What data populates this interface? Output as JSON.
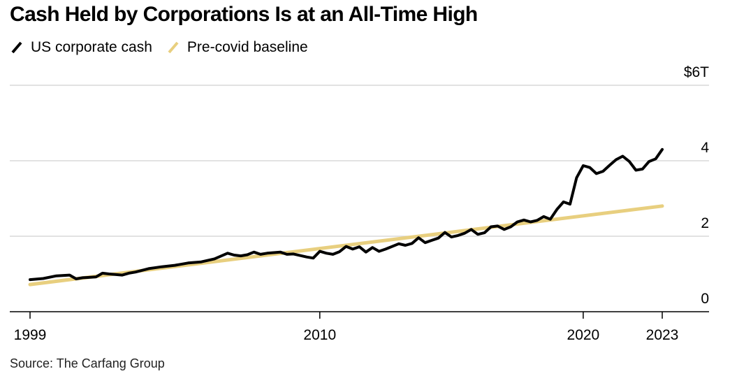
{
  "header": {
    "title": "Cash Held by Corporations Is at an All-Time High"
  },
  "legend": [
    {
      "label": "US corporate cash",
      "color": "#000000",
      "icon": "slash-line-icon"
    },
    {
      "label": "Pre-covid baseline",
      "color": "#e8cf7f",
      "icon": "slash-line-icon"
    }
  ],
  "footer": {
    "source": "Source: The Carfang Group"
  },
  "chart_data": {
    "type": "line",
    "title": "Cash Held by Corporations Is at an All-Time High",
    "xlabel": "",
    "ylabel": "",
    "xlim": [
      1999,
      2025.0
    ],
    "ylim": [
      0,
      6
    ],
    "grid": true,
    "legend_position": "top-left",
    "y_ticks": [
      {
        "value": 6,
        "label": "$6T"
      },
      {
        "value": 4,
        "label": "4"
      },
      {
        "value": 2,
        "label": "2"
      },
      {
        "value": 0,
        "label": "0"
      }
    ],
    "x_ticks": [
      {
        "value": 1999,
        "label": "1999"
      },
      {
        "value": 2010,
        "label": "2010"
      },
      {
        "value": 2020,
        "label": "2020"
      },
      {
        "value": 2023,
        "label": "2023"
      }
    ],
    "series": [
      {
        "name": "US corporate cash",
        "color": "#000000",
        "x": [
          1999.0,
          1999.5,
          2000.0,
          2000.5,
          2000.75,
          2001.0,
          2001.5,
          2001.75,
          2002.0,
          2002.5,
          2002.75,
          2003.0,
          2003.5,
          2004.0,
          2004.5,
          2005.0,
          2005.5,
          2006.0,
          2006.5,
          2006.75,
          2007.0,
          2007.25,
          2007.5,
          2007.75,
          2008.0,
          2008.5,
          2008.75,
          2009.0,
          2009.5,
          2009.75,
          2010.0,
          2010.25,
          2010.5,
          2010.75,
          2011.0,
          2011.25,
          2011.5,
          2011.75,
          2012.0,
          2012.25,
          2012.5,
          2013.0,
          2013.25,
          2013.5,
          2013.75,
          2014.0,
          2014.25,
          2014.5,
          2014.75,
          2015.0,
          2015.25,
          2015.5,
          2015.75,
          2016.0,
          2016.25,
          2016.5,
          2016.75,
          2017.0,
          2017.25,
          2017.5,
          2017.75,
          2018.0,
          2018.25,
          2018.5,
          2018.75,
          2019.0,
          2019.25,
          2019.5,
          2019.75,
          2020.0,
          2020.25,
          2020.5,
          2020.75,
          2021.0,
          2021.25,
          2021.5,
          2021.75,
          2022.0,
          2022.25,
          2022.5,
          2022.75,
          2023.0
        ],
        "values": [
          0.85,
          0.88,
          0.95,
          0.97,
          0.87,
          0.9,
          0.92,
          1.02,
          1.0,
          0.97,
          1.02,
          1.05,
          1.14,
          1.19,
          1.23,
          1.29,
          1.32,
          1.4,
          1.55,
          1.5,
          1.48,
          1.51,
          1.58,
          1.52,
          1.55,
          1.58,
          1.52,
          1.53,
          1.45,
          1.42,
          1.6,
          1.55,
          1.52,
          1.59,
          1.73,
          1.66,
          1.72,
          1.58,
          1.7,
          1.6,
          1.66,
          1.8,
          1.76,
          1.81,
          1.96,
          1.83,
          1.89,
          1.95,
          2.1,
          1.98,
          2.02,
          2.08,
          2.18,
          2.05,
          2.09,
          2.25,
          2.27,
          2.18,
          2.25,
          2.38,
          2.43,
          2.38,
          2.42,
          2.52,
          2.45,
          2.71,
          2.91,
          2.85,
          3.55,
          3.87,
          3.82,
          3.66,
          3.72,
          3.88,
          4.03,
          4.12,
          3.98,
          3.75,
          3.78,
          3.98,
          4.05,
          4.3
        ]
      },
      {
        "name": "Pre-covid baseline",
        "color": "#e8cf7f",
        "x": [
          1999.0,
          2023.0
        ],
        "values": [
          0.72,
          2.8
        ]
      }
    ]
  }
}
